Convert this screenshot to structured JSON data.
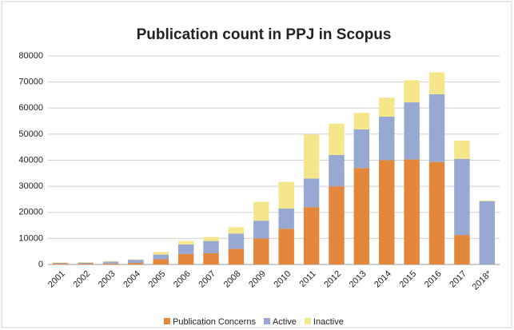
{
  "chart_data": {
    "type": "stacked_bar",
    "title": "Publication count in PPJ in Scopus",
    "categories": [
      "2001",
      "2002",
      "2003",
      "2004",
      "2005",
      "2006",
      "2007",
      "2008",
      "2009",
      "2010",
      "2011",
      "2012",
      "2013",
      "2014",
      "2015",
      "2016",
      "2017",
      "2018*"
    ],
    "series": [
      {
        "name": "Publication Concerns",
        "color": "#e3873d",
        "values": [
          300,
          300,
          400,
          600,
          2000,
          4000,
          4300,
          6000,
          10000,
          13700,
          22000,
          30000,
          37000,
          40000,
          40300,
          39300,
          11300,
          0
        ]
      },
      {
        "name": "Active",
        "color": "#97a9d2",
        "values": [
          300,
          400,
          700,
          1200,
          1800,
          3700,
          4700,
          5800,
          6800,
          7800,
          11000,
          12000,
          14800,
          16700,
          21900,
          26000,
          29200,
          24300
        ]
      },
      {
        "name": "Inactive",
        "color": "#f5e68b",
        "values": [
          200,
          200,
          200,
          200,
          1000,
          1300,
          1500,
          2500,
          7200,
          10200,
          16800,
          12000,
          6400,
          7300,
          8500,
          8400,
          7000,
          300
        ]
      }
    ],
    "ylim": [
      0,
      80000
    ],
    "yticks": [
      0,
      10000,
      20000,
      30000,
      40000,
      50000,
      60000,
      70000,
      80000
    ],
    "grid": true,
    "legend": "bottom"
  }
}
